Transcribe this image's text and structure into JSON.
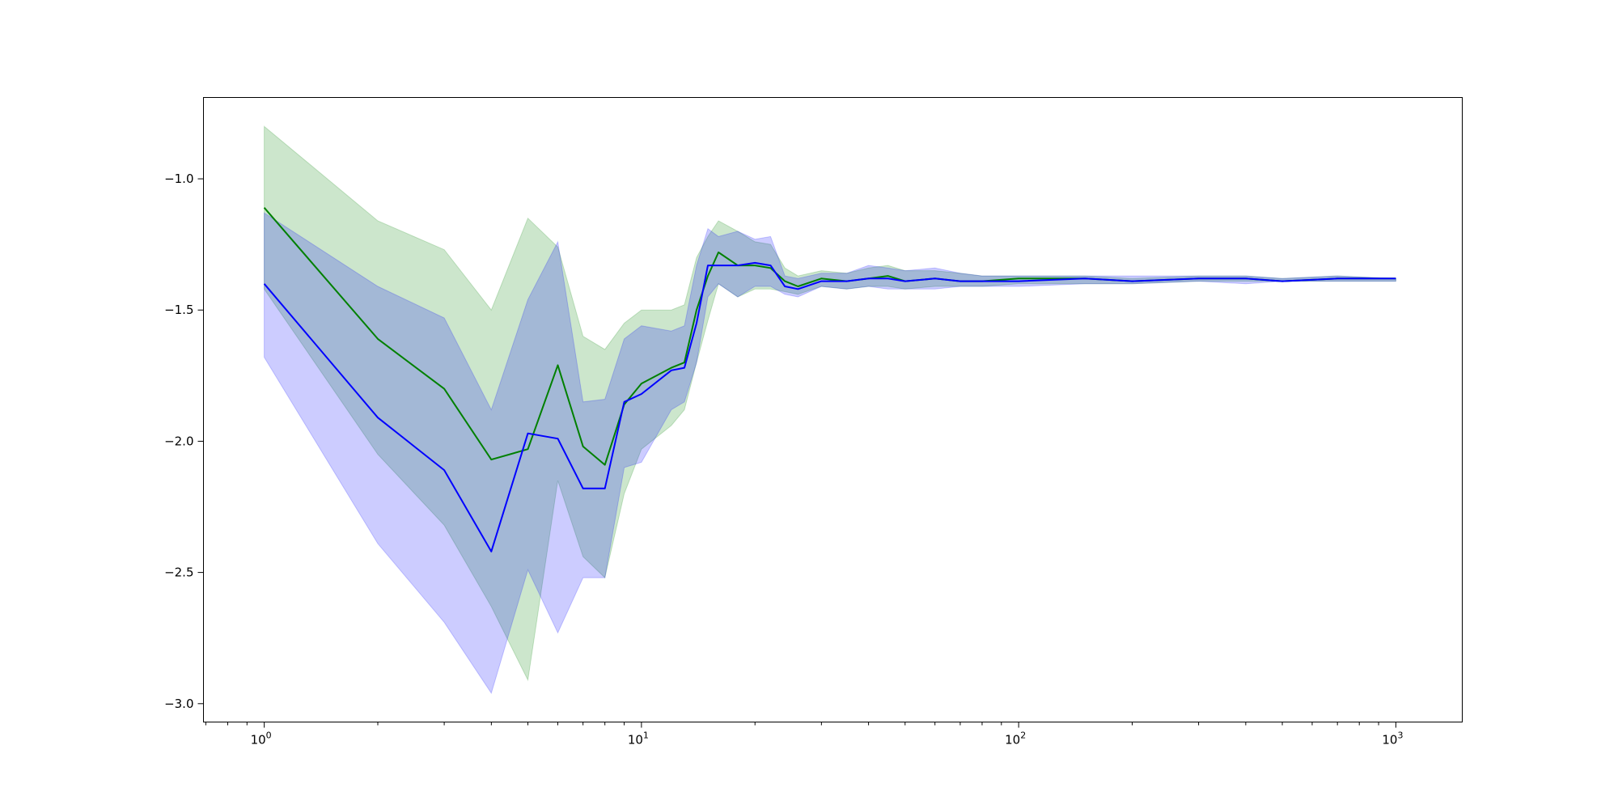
{
  "chart_data": {
    "type": "line",
    "title": "",
    "xlabel": "",
    "ylabel": "",
    "xscale": "log",
    "xlim": [
      0.69,
      1500
    ],
    "ylim": [
      -3.07,
      -0.69
    ],
    "grid": false,
    "legend": "none",
    "x_ticks": [
      {
        "value": 1,
        "base": "10",
        "exp": "0"
      },
      {
        "value": 10,
        "base": "10",
        "exp": "1"
      },
      {
        "value": 100,
        "base": "10",
        "exp": "2"
      },
      {
        "value": 1000,
        "base": "10",
        "exp": "3"
      }
    ],
    "y_ticks": [
      {
        "value": -1.0,
        "label": "−1.0"
      },
      {
        "value": -1.5,
        "label": "−1.5"
      },
      {
        "value": -2.0,
        "label": "−2.0"
      },
      {
        "value": -2.5,
        "label": "−2.5"
      },
      {
        "value": -3.0,
        "label": "−3.0"
      }
    ],
    "series": [
      {
        "color": "#008000",
        "band_color": "#008000",
        "band_opacity": 0.2,
        "x": [
          1,
          2,
          3,
          4,
          5,
          6,
          7,
          8,
          9,
          10,
          12,
          13,
          14,
          15,
          16,
          18,
          20,
          22,
          24,
          26,
          30,
          35,
          40,
          45,
          50,
          60,
          70,
          80,
          100,
          150,
          200,
          300,
          400,
          500,
          700,
          1000
        ],
        "y": [
          -1.11,
          -1.61,
          -1.8,
          -2.07,
          -2.03,
          -1.71,
          -2.02,
          -2.09,
          -1.86,
          -1.78,
          -1.72,
          -1.7,
          -1.5,
          -1.37,
          -1.28,
          -1.33,
          -1.33,
          -1.34,
          -1.39,
          -1.41,
          -1.38,
          -1.39,
          -1.38,
          -1.37,
          -1.39,
          -1.38,
          -1.39,
          -1.39,
          -1.38,
          -1.38,
          -1.39,
          -1.38,
          -1.38,
          -1.39,
          -1.38,
          -1.38
        ],
        "upper": [
          -0.8,
          -1.16,
          -1.27,
          -1.5,
          -1.15,
          -1.26,
          -1.6,
          -1.65,
          -1.55,
          -1.5,
          -1.5,
          -1.48,
          -1.3,
          -1.22,
          -1.16,
          -1.2,
          -1.24,
          -1.25,
          -1.34,
          -1.37,
          -1.35,
          -1.36,
          -1.34,
          -1.33,
          -1.35,
          -1.35,
          -1.36,
          -1.37,
          -1.37,
          -1.37,
          -1.38,
          -1.37,
          -1.37,
          -1.38,
          -1.37,
          -1.38
        ],
        "lower": [
          -1.42,
          -2.05,
          -2.32,
          -2.63,
          -2.91,
          -2.15,
          -2.44,
          -2.52,
          -2.2,
          -2.03,
          -1.94,
          -1.88,
          -1.7,
          -1.54,
          -1.4,
          -1.45,
          -1.42,
          -1.42,
          -1.43,
          -1.44,
          -1.41,
          -1.42,
          -1.41,
          -1.41,
          -1.42,
          -1.41,
          -1.41,
          -1.41,
          -1.4,
          -1.4,
          -1.4,
          -1.39,
          -1.39,
          -1.39,
          -1.39,
          -1.39
        ]
      },
      {
        "color": "#0000ff",
        "band_color": "#0000ff",
        "band_opacity": 0.2,
        "x": [
          1,
          2,
          3,
          4,
          5,
          6,
          7,
          8,
          9,
          10,
          12,
          13,
          14,
          15,
          16,
          18,
          20,
          22,
          24,
          26,
          30,
          35,
          40,
          45,
          50,
          60,
          70,
          80,
          100,
          150,
          200,
          300,
          400,
          500,
          700,
          1000
        ],
        "y": [
          -1.4,
          -1.91,
          -2.11,
          -2.42,
          -1.97,
          -1.99,
          -2.18,
          -2.18,
          -1.85,
          -1.82,
          -1.73,
          -1.72,
          -1.55,
          -1.33,
          -1.33,
          -1.33,
          -1.32,
          -1.33,
          -1.41,
          -1.42,
          -1.39,
          -1.39,
          -1.38,
          -1.38,
          -1.39,
          -1.38,
          -1.39,
          -1.39,
          -1.39,
          -1.38,
          -1.39,
          -1.38,
          -1.38,
          -1.39,
          -1.38,
          -1.38
        ],
        "upper": [
          -1.13,
          -1.41,
          -1.53,
          -1.88,
          -1.46,
          -1.24,
          -1.85,
          -1.84,
          -1.61,
          -1.56,
          -1.58,
          -1.56,
          -1.33,
          -1.19,
          -1.22,
          -1.2,
          -1.23,
          -1.22,
          -1.37,
          -1.38,
          -1.36,
          -1.36,
          -1.33,
          -1.34,
          -1.35,
          -1.34,
          -1.36,
          -1.37,
          -1.37,
          -1.37,
          -1.37,
          -1.37,
          -1.37,
          -1.38,
          -1.37,
          -1.38
        ],
        "lower": [
          -1.68,
          -2.39,
          -2.69,
          -2.96,
          -2.49,
          -2.73,
          -2.52,
          -2.52,
          -2.1,
          -2.08,
          -1.88,
          -1.85,
          -1.7,
          -1.45,
          -1.4,
          -1.45,
          -1.41,
          -1.41,
          -1.44,
          -1.45,
          -1.41,
          -1.42,
          -1.41,
          -1.42,
          -1.42,
          -1.42,
          -1.41,
          -1.41,
          -1.41,
          -1.4,
          -1.4,
          -1.39,
          -1.4,
          -1.39,
          -1.39,
          -1.39
        ]
      }
    ]
  }
}
